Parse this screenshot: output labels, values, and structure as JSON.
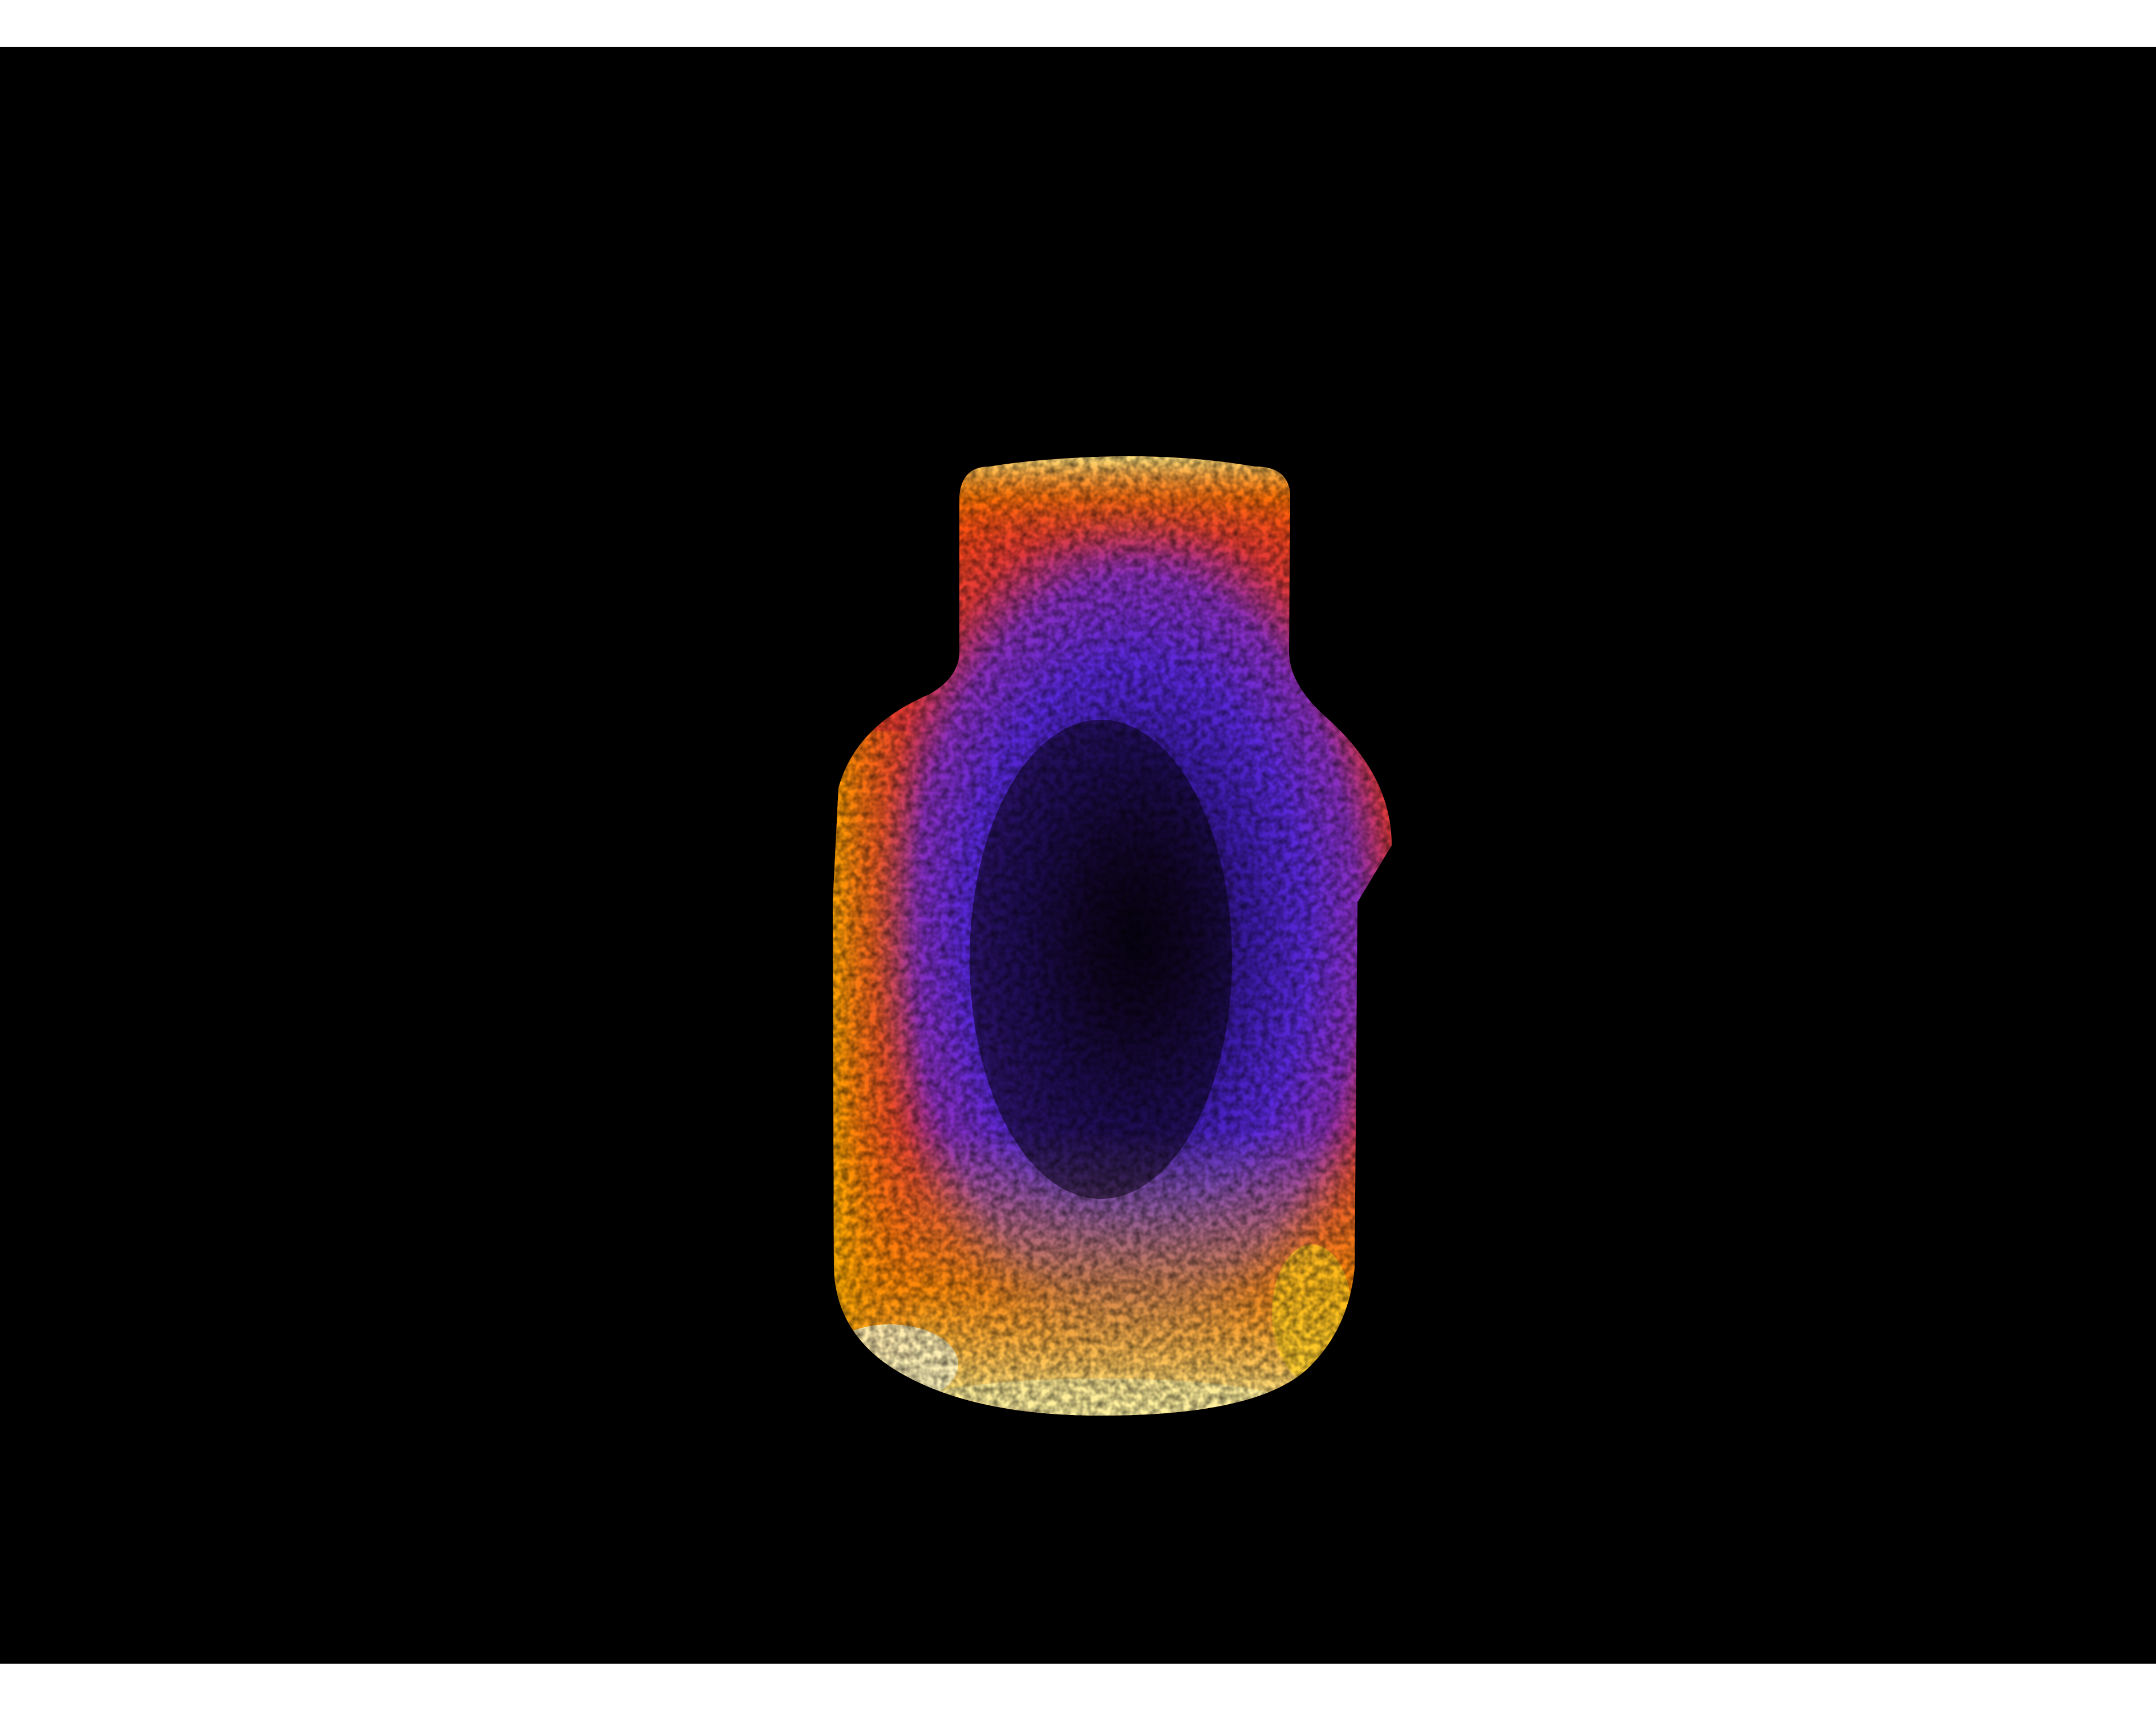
{
  "image": {
    "subject_icon": "bottle-icon",
    "colormap": [
      "#000000",
      "#2a0a5a",
      "#5a22d6",
      "#ff3a1a",
      "#ff8a00",
      "#ffd21a",
      "#fff7b0"
    ],
    "background_color": "#000000"
  }
}
